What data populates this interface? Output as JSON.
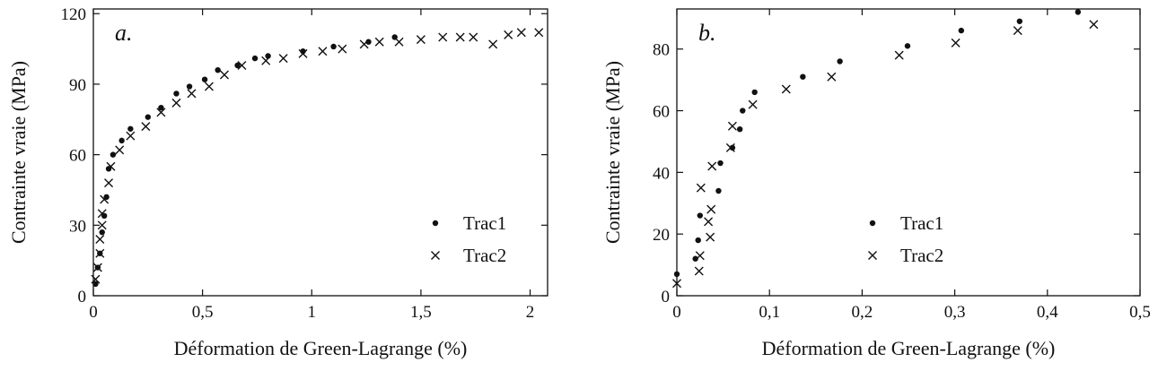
{
  "chart_data": [
    {
      "type": "scatter",
      "panel_label": "a.",
      "xlabel": "Déformation de Green-Lagrange (%)",
      "ylabel": "Contrainte vraie (MPa)",
      "xlim": [
        0,
        2.08
      ],
      "ylim": [
        0,
        122
      ],
      "xticks": [
        0,
        0.5,
        1,
        1.5,
        2
      ],
      "xtick_labels": [
        "0",
        "0,5",
        "1",
        "1,5",
        "2"
      ],
      "yticks": [
        0,
        30,
        60,
        90,
        120
      ],
      "ytick_labels": [
        "0",
        "30",
        "60",
        "90",
        "120"
      ],
      "grid": false,
      "legend_position": "bottom-right",
      "series": [
        {
          "name": "Trac1",
          "marker": "dot",
          "x": [
            0.01,
            0.02,
            0.03,
            0.04,
            0.05,
            0.06,
            0.07,
            0.09,
            0.13,
            0.17,
            0.25,
            0.31,
            0.38,
            0.44,
            0.51,
            0.57,
            0.66,
            0.74,
            0.8,
            0.96,
            1.1,
            1.26,
            1.38
          ],
          "y": [
            5,
            12,
            18,
            27,
            34,
            42,
            54,
            60,
            66,
            71,
            76,
            80,
            86,
            89,
            92,
            96,
            98,
            101,
            102,
            104,
            106,
            108,
            110
          ]
        },
        {
          "name": "Trac2",
          "marker": "cross",
          "x": [
            0.01,
            0.02,
            0.03,
            0.03,
            0.04,
            0.04,
            0.05,
            0.07,
            0.08,
            0.12,
            0.17,
            0.24,
            0.31,
            0.38,
            0.45,
            0.53,
            0.6,
            0.68,
            0.79,
            0.87,
            0.96,
            1.05,
            1.14,
            1.24,
            1.31,
            1.4,
            1.5,
            1.6,
            1.68,
            1.74,
            1.83,
            1.9,
            1.96,
            2.04
          ],
          "y": [
            7,
            12,
            18,
            24,
            30,
            35,
            41,
            48,
            55,
            62,
            68,
            72,
            78,
            82,
            86,
            89,
            94,
            98,
            100,
            101,
            103,
            104,
            105,
            107,
            108,
            108,
            109,
            110,
            110,
            110,
            107,
            111,
            112,
            112
          ]
        }
      ]
    },
    {
      "type": "scatter",
      "panel_label": "b.",
      "xlabel": "Déformation de Green-Lagrange (%)",
      "ylabel": "Contrainte vraie (MPa)",
      "xlim": [
        0,
        0.5
      ],
      "ylim": [
        0,
        93
      ],
      "xticks": [
        0,
        0.1,
        0.2,
        0.3,
        0.4,
        0.5
      ],
      "xtick_labels": [
        "0",
        "0,1",
        "0,2",
        "0,3",
        "0,4",
        "0,5"
      ],
      "yticks": [
        0,
        20,
        40,
        60,
        80
      ],
      "ytick_labels": [
        "0",
        "20",
        "40",
        "60",
        "80"
      ],
      "grid": false,
      "legend_position": "bottom-right",
      "series": [
        {
          "name": "Trac1",
          "marker": "dot",
          "x": [
            0,
            0.02,
            0.023,
            0.025,
            0.045,
            0.047,
            0.06,
            0.068,
            0.071,
            0.084,
            0.136,
            0.176,
            0.249,
            0.307,
            0.37,
            0.433
          ],
          "y": [
            7,
            12,
            18,
            26,
            34,
            43,
            48,
            54,
            60,
            66,
            71,
            76,
            81,
            86,
            89,
            92
          ]
        },
        {
          "name": "Trac2",
          "marker": "cross",
          "x": [
            0,
            0.024,
            0.025,
            0.026,
            0.034,
            0.036,
            0.037,
            0.038,
            0.058,
            0.06,
            0.082,
            0.118,
            0.167,
            0.24,
            0.301,
            0.368,
            0.45
          ],
          "y": [
            4,
            8,
            13,
            35,
            24,
            19,
            28,
            42,
            48,
            55,
            62,
            67,
            71,
            78,
            82,
            86,
            88
          ]
        }
      ]
    }
  ]
}
